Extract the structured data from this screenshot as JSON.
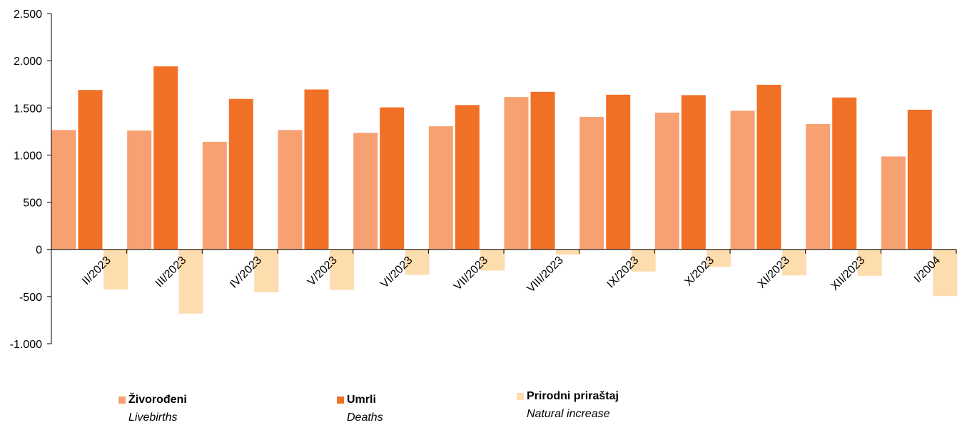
{
  "chart_data": {
    "type": "bar",
    "categories": [
      "II/2023",
      "III/2023",
      "IV/2023",
      "V/2023",
      "VI/2023",
      "VII/2023",
      "VIII/2023",
      "IX/2023",
      "X/2023",
      "XI/2023",
      "XII/2023",
      "I/2004"
    ],
    "series": [
      {
        "name": "Živorođeni",
        "name_en": "Livebirths",
        "color": "#f7a072",
        "values": [
          1265,
          1260,
          1140,
          1265,
          1235,
          1305,
          1615,
          1405,
          1450,
          1470,
          1330,
          985
        ]
      },
      {
        "name": "Umrli",
        "name_en": "Deaths",
        "color": "#f07026",
        "values": [
          1690,
          1940,
          1595,
          1695,
          1505,
          1530,
          1670,
          1640,
          1635,
          1745,
          1610,
          1480
        ]
      },
      {
        "name": "Prirodni priraštaj",
        "name_en": "Natural increase",
        "color": "#fddcae",
        "values": [
          -425,
          -680,
          -455,
          -430,
          -270,
          -225,
          -55,
          -235,
          -185,
          -275,
          -280,
          -495
        ]
      }
    ],
    "ylim": [
      -1000,
      2500
    ],
    "yticks": [
      2500,
      2000,
      1500,
      1000,
      500,
      0,
      -500,
      -1000
    ],
    "ytick_labels": [
      "2.500",
      "2.000",
      "1.500",
      "1.000",
      "500",
      "0",
      "-500",
      "-1.000"
    ],
    "grid": false,
    "legend_position": "bottom",
    "title": "",
    "xlabel": "",
    "ylabel": ""
  }
}
